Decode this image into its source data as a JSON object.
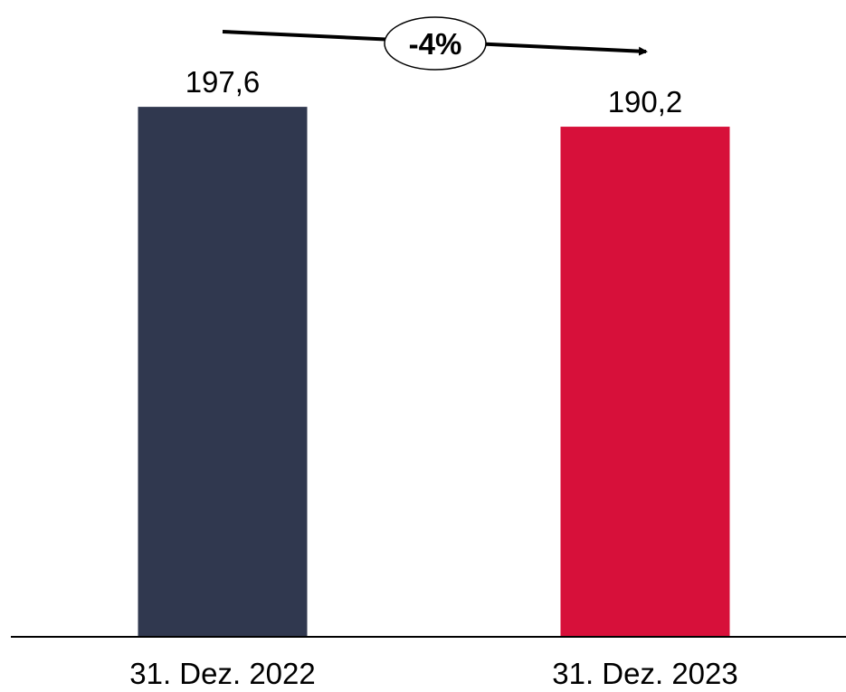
{
  "chart_data": {
    "type": "bar",
    "categories": [
      "31. Dez. 2022",
      "31. Dez. 2023"
    ],
    "values": [
      197.6,
      190.2
    ],
    "value_labels": [
      "197,6",
      "190,2"
    ],
    "colors": [
      "#30384f",
      "#d7103a"
    ],
    "change_annotation": "-4%",
    "title": "",
    "xlabel": "",
    "ylabel": "",
    "ylim": [
      0,
      225
    ],
    "grid": false,
    "legend": "none"
  }
}
